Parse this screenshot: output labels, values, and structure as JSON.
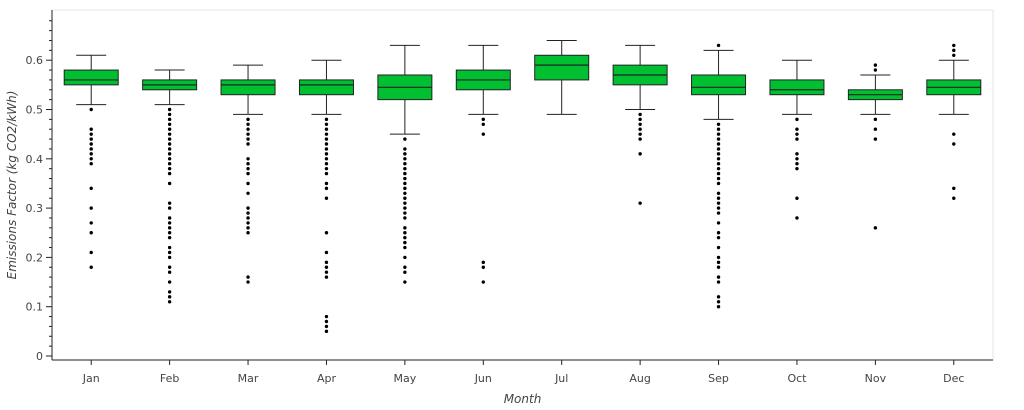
{
  "chart_data": {
    "type": "box",
    "title": "",
    "xlabel": "Month",
    "ylabel": "Emissions Factor (kg CO2/kWh)",
    "ylim": [
      0,
      0.7
    ],
    "yticks": [
      "0",
      "0.1",
      "0.2",
      "0.3",
      "0.4",
      "0.5",
      "0.6"
    ],
    "grid": false,
    "box_color": "#00c032",
    "categories": [
      "Jan",
      "Feb",
      "Mar",
      "Apr",
      "May",
      "Jun",
      "Jul",
      "Aug",
      "Sep",
      "Oct",
      "Nov",
      "Dec"
    ],
    "boxes": [
      {
        "whisker_low": 0.51,
        "q1": 0.55,
        "median": 0.56,
        "q3": 0.58,
        "whisker_high": 0.61,
        "outliers": [
          0.5,
          0.46,
          0.45,
          0.44,
          0.43,
          0.42,
          0.41,
          0.4,
          0.39,
          0.34,
          0.3,
          0.27,
          0.25,
          0.21,
          0.18
        ]
      },
      {
        "whisker_low": 0.51,
        "q1": 0.54,
        "median": 0.55,
        "q3": 0.56,
        "whisker_high": 0.58,
        "outliers": [
          0.5,
          0.49,
          0.48,
          0.47,
          0.46,
          0.45,
          0.44,
          0.43,
          0.42,
          0.41,
          0.4,
          0.39,
          0.38,
          0.37,
          0.35,
          0.31,
          0.3,
          0.28,
          0.27,
          0.26,
          0.25,
          0.24,
          0.22,
          0.21,
          0.2,
          0.18,
          0.17,
          0.15,
          0.13,
          0.12,
          0.11
        ]
      },
      {
        "whisker_low": 0.49,
        "q1": 0.53,
        "median": 0.55,
        "q3": 0.56,
        "whisker_high": 0.59,
        "outliers": [
          0.48,
          0.47,
          0.46,
          0.45,
          0.44,
          0.43,
          0.4,
          0.39,
          0.38,
          0.37,
          0.35,
          0.33,
          0.3,
          0.29,
          0.28,
          0.27,
          0.26,
          0.25,
          0.16,
          0.15
        ]
      },
      {
        "whisker_low": 0.49,
        "q1": 0.53,
        "median": 0.55,
        "q3": 0.56,
        "whisker_high": 0.6,
        "outliers": [
          0.48,
          0.47,
          0.46,
          0.45,
          0.44,
          0.43,
          0.42,
          0.41,
          0.4,
          0.39,
          0.38,
          0.37,
          0.35,
          0.34,
          0.32,
          0.25,
          0.21,
          0.19,
          0.18,
          0.17,
          0.16,
          0.08,
          0.07,
          0.06,
          0.05
        ]
      },
      {
        "whisker_low": 0.45,
        "q1": 0.52,
        "median": 0.545,
        "q3": 0.57,
        "whisker_high": 0.63,
        "outliers": [
          0.44,
          0.42,
          0.41,
          0.4,
          0.39,
          0.38,
          0.37,
          0.36,
          0.35,
          0.34,
          0.33,
          0.32,
          0.31,
          0.3,
          0.29,
          0.28,
          0.26,
          0.25,
          0.24,
          0.23,
          0.22,
          0.2,
          0.18,
          0.17,
          0.15
        ]
      },
      {
        "whisker_low": 0.49,
        "q1": 0.54,
        "median": 0.56,
        "q3": 0.58,
        "whisker_high": 0.63,
        "outliers": [
          0.48,
          0.47,
          0.45,
          0.19,
          0.18,
          0.15
        ]
      },
      {
        "whisker_low": 0.49,
        "q1": 0.56,
        "median": 0.59,
        "q3": 0.61,
        "whisker_high": 0.64,
        "outliers": []
      },
      {
        "whisker_low": 0.5,
        "q1": 0.55,
        "median": 0.57,
        "q3": 0.59,
        "whisker_high": 0.63,
        "outliers": [
          0.49,
          0.48,
          0.47,
          0.46,
          0.45,
          0.44,
          0.41,
          0.31
        ]
      },
      {
        "whisker_low": 0.48,
        "q1": 0.53,
        "median": 0.545,
        "q3": 0.57,
        "whisker_high": 0.62,
        "outliers": [
          0.63,
          0.47,
          0.46,
          0.45,
          0.44,
          0.43,
          0.42,
          0.41,
          0.4,
          0.39,
          0.38,
          0.37,
          0.36,
          0.35,
          0.33,
          0.32,
          0.31,
          0.3,
          0.29,
          0.27,
          0.25,
          0.24,
          0.22,
          0.2,
          0.19,
          0.18,
          0.16,
          0.15,
          0.12,
          0.11,
          0.1
        ]
      },
      {
        "whisker_low": 0.49,
        "q1": 0.53,
        "median": 0.54,
        "q3": 0.56,
        "whisker_high": 0.6,
        "outliers": [
          0.48,
          0.46,
          0.45,
          0.44,
          0.41,
          0.4,
          0.39,
          0.38,
          0.32,
          0.28
        ]
      },
      {
        "whisker_low": 0.49,
        "q1": 0.52,
        "median": 0.53,
        "q3": 0.54,
        "whisker_high": 0.57,
        "outliers": [
          0.59,
          0.58,
          0.48,
          0.46,
          0.44,
          0.26
        ]
      },
      {
        "whisker_low": 0.49,
        "q1": 0.53,
        "median": 0.545,
        "q3": 0.56,
        "whisker_high": 0.6,
        "outliers": [
          0.63,
          0.62,
          0.61,
          0.45,
          0.43,
          0.34,
          0.32
        ]
      }
    ]
  }
}
